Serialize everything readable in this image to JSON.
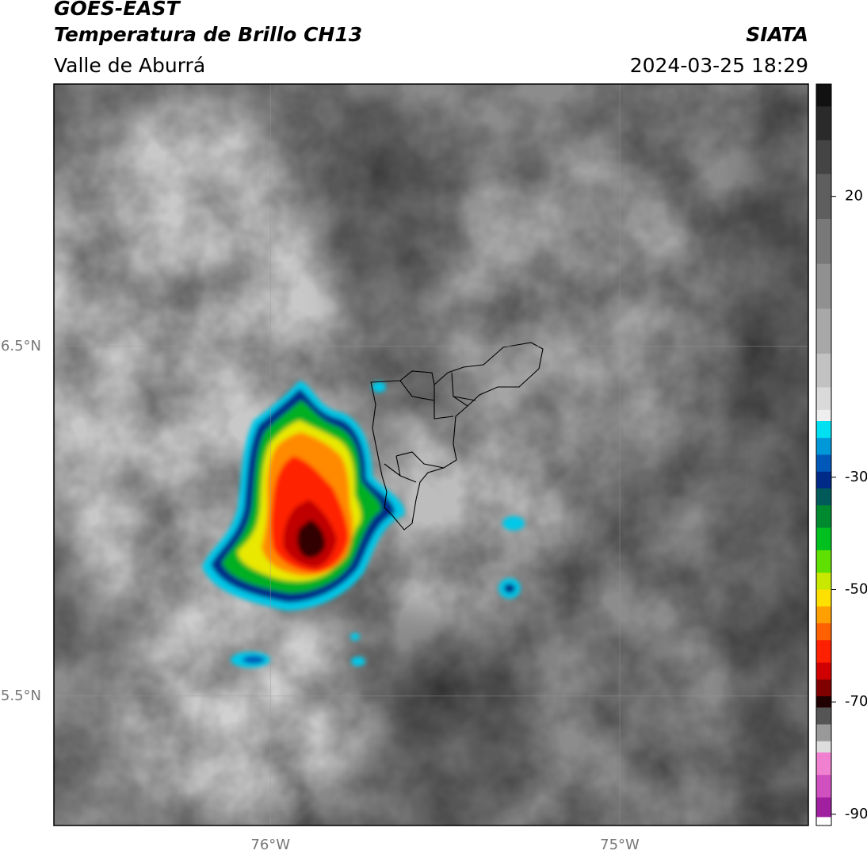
{
  "header": {
    "title": "GOES-EAST",
    "subtitle": "Temperatura de Brillo CH13",
    "region": "Valle de Aburrá",
    "source": "SIATA",
    "timestamp": "2024-03-25 18:29"
  },
  "map": {
    "xlim": [
      -76.62,
      -74.46
    ],
    "ylim": [
      5.13,
      7.25
    ],
    "xticks": [
      {
        "value": -76,
        "label": "76°W"
      },
      {
        "value": -75,
        "label": "75°W"
      }
    ],
    "yticks": [
      {
        "value": 6.5,
        "label": "6.5°N"
      },
      {
        "value": 5.5,
        "label": "5.5°N"
      }
    ],
    "grid": true
  },
  "colorbar": {
    "lim": [
      -92,
      40
    ],
    "ticks": [
      20,
      -30,
      -50,
      -70,
      -90
    ],
    "colorscale": [
      {
        "value": 40,
        "color": "#111111"
      },
      {
        "value": 36,
        "color": "#2a2a2a"
      },
      {
        "value": 30,
        "color": "#444444"
      },
      {
        "value": 24,
        "color": "#5e5e5e"
      },
      {
        "value": 16,
        "color": "#787878"
      },
      {
        "value": 8,
        "color": "#909090"
      },
      {
        "value": 0,
        "color": "#a8a8a8"
      },
      {
        "value": -8,
        "color": "#c2c2c2"
      },
      {
        "value": -14,
        "color": "#dadada"
      },
      {
        "value": -18,
        "color": "#eeeeee"
      },
      {
        "value": -20,
        "color": "#00e0f0"
      },
      {
        "value": -23,
        "color": "#0098d8"
      },
      {
        "value": -26,
        "color": "#0058b8"
      },
      {
        "value": -29,
        "color": "#002a88"
      },
      {
        "value": -32,
        "color": "#005a5a"
      },
      {
        "value": -35,
        "color": "#008a30"
      },
      {
        "value": -39,
        "color": "#00c020"
      },
      {
        "value": -43,
        "color": "#60e000"
      },
      {
        "value": -47,
        "color": "#c8e800"
      },
      {
        "value": -50,
        "color": "#ffe000"
      },
      {
        "value": -53,
        "color": "#ffa000"
      },
      {
        "value": -56,
        "color": "#ff6000"
      },
      {
        "value": -59,
        "color": "#ff2000"
      },
      {
        "value": -63,
        "color": "#d00000"
      },
      {
        "value": -66,
        "color": "#800000"
      },
      {
        "value": -69,
        "color": "#200000"
      },
      {
        "value": -71,
        "color": "#555555"
      },
      {
        "value": -74,
        "color": "#999999"
      },
      {
        "value": -77,
        "color": "#dddddd"
      },
      {
        "value": -79,
        "color": "#f080d0"
      },
      {
        "value": -83,
        "color": "#d050c0"
      },
      {
        "value": -87,
        "color": "#a020a0"
      },
      {
        "value": -90.5,
        "color": "#ffffff"
      }
    ]
  }
}
